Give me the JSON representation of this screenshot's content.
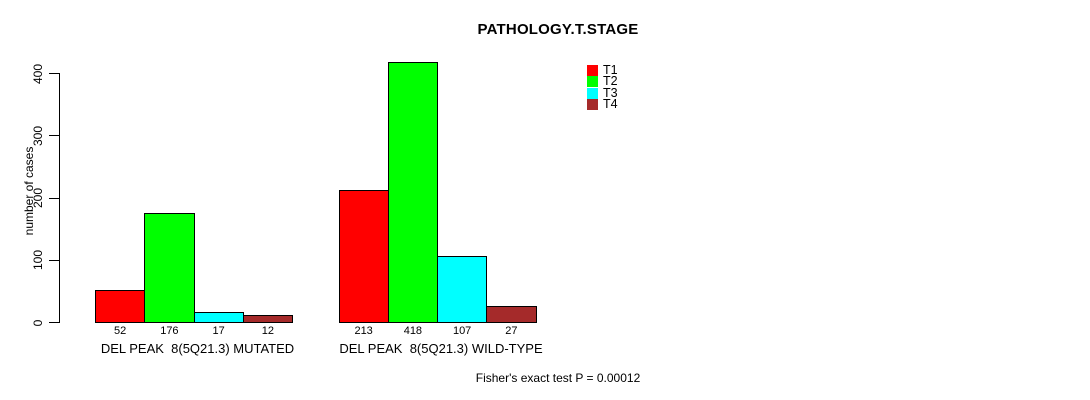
{
  "title": "PATHOLOGY.T.STAGE",
  "chart_data": {
    "type": "bar",
    "title": "PATHOLOGY.T.STAGE",
    "ylabel": "number of cases",
    "xlabel": "",
    "ylim": [
      0,
      400
    ],
    "yticks": [
      0,
      100,
      200,
      300,
      400
    ],
    "grid": false,
    "legend_position": "top-right",
    "series": [
      {
        "name": "T1",
        "color": "#FF0000"
      },
      {
        "name": "T2",
        "color": "#00FF00"
      },
      {
        "name": "T3",
        "color": "#00FFFF"
      },
      {
        "name": "T4",
        "color": "#A52A2A"
      }
    ],
    "groups": [
      {
        "label": "DEL PEAK  8(5Q21.3) MUTATED",
        "values": [
          52,
          176,
          17,
          12
        ]
      },
      {
        "label": "DEL PEAK  8(5Q21.3) WILD-TYPE",
        "values": [
          213,
          418,
          107,
          27
        ]
      }
    ],
    "annotation": "Fisher's exact test P = 0.00012"
  }
}
